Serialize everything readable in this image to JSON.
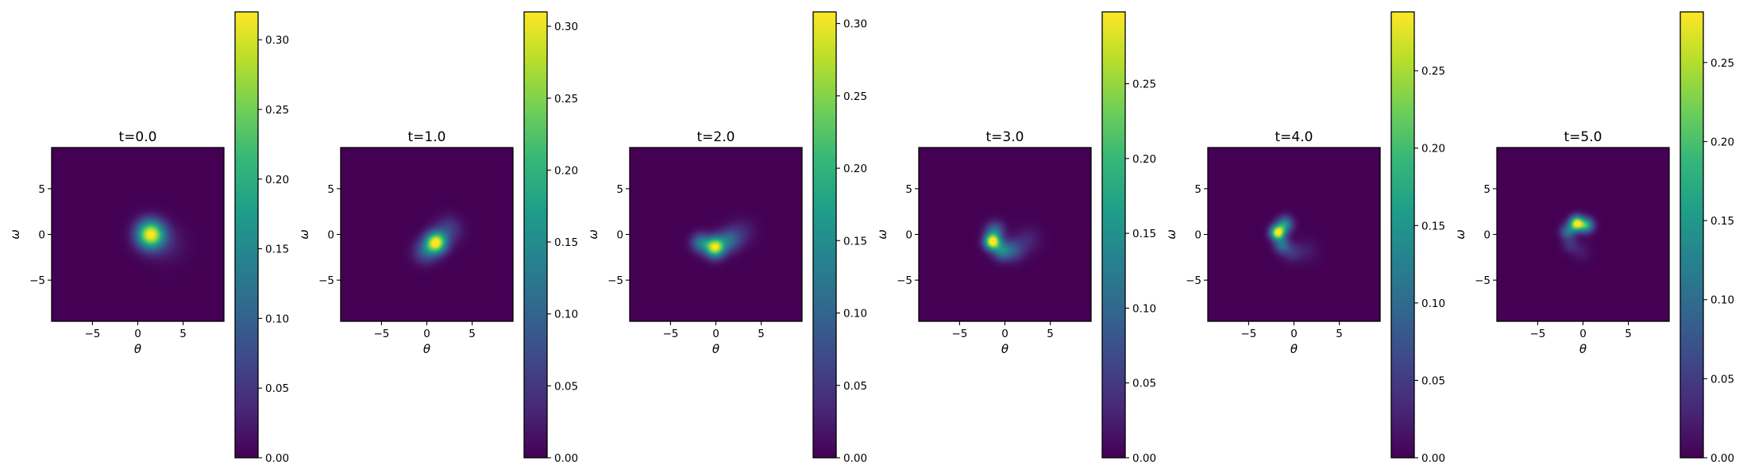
{
  "chart_data": {
    "type": "heatmap",
    "colormap": "viridis",
    "colormap_stops": [
      "#440154",
      "#482878",
      "#3e4989",
      "#31688e",
      "#26828e",
      "#1f9e89",
      "#35b779",
      "#6ece58",
      "#b5de2b",
      "#fde725"
    ],
    "x_ticks": [
      -5,
      0,
      5
    ],
    "y_ticks": [
      -5,
      0,
      5
    ],
    "xlabel": "θ",
    "ylabel": "ω",
    "xlim": [
      -9.5,
      9.5
    ],
    "ylim": [
      -9.5,
      9.5
    ],
    "panels": [
      {
        "title": "t=0.0",
        "colorbar": {
          "min": 0,
          "max": 0.32,
          "ticks": [
            "0.00",
            "0.05",
            "0.10",
            "0.15",
            "0.20",
            "0.25",
            "0.30"
          ]
        },
        "blobs": [
          {
            "theta": 1.4,
            "omega": 0.0,
            "sigma": 1.05,
            "peak": 0.32
          },
          {
            "theta": 3.2,
            "omega": -1.0,
            "sigma": 1.4,
            "peak": 0.03
          }
        ]
      },
      {
        "title": "t=1.0",
        "colorbar": {
          "min": 0,
          "max": 0.31,
          "ticks": [
            "0.00",
            "0.05",
            "0.10",
            "0.15",
            "0.20",
            "0.25",
            "0.30"
          ]
        },
        "blobs": [
          {
            "theta": 1.0,
            "omega": -0.9,
            "sigma": 0.8,
            "peak": 0.31
          },
          {
            "theta": -0.2,
            "omega": -1.9,
            "sigma": 0.9,
            "peak": 0.08
          },
          {
            "theta": 2.4,
            "omega": 0.5,
            "sigma": 1.0,
            "peak": 0.06
          }
        ]
      },
      {
        "title": "t=2.0",
        "colorbar": {
          "min": 0,
          "max": 0.308,
          "ticks": [
            "0.00",
            "0.05",
            "0.10",
            "0.15",
            "0.20",
            "0.25",
            "0.30"
          ]
        },
        "blobs": [
          {
            "theta": -0.1,
            "omega": -1.4,
            "sigma": 0.75,
            "peak": 0.3
          },
          {
            "theta": -1.7,
            "omega": -0.9,
            "sigma": 0.7,
            "peak": 0.12
          },
          {
            "theta": 1.5,
            "omega": -0.6,
            "sigma": 0.85,
            "peak": 0.1
          },
          {
            "theta": 3.0,
            "omega": 0.3,
            "sigma": 1.0,
            "peak": 0.03
          }
        ]
      },
      {
        "title": "t=3.0",
        "colorbar": {
          "min": 0,
          "max": 0.298,
          "ticks": [
            "0.00",
            "0.05",
            "0.10",
            "0.15",
            "0.20",
            "0.25"
          ]
        },
        "blobs": [
          {
            "theta": -1.4,
            "omega": -0.8,
            "sigma": 0.6,
            "peak": 0.3
          },
          {
            "theta": -1.1,
            "omega": 0.4,
            "sigma": 0.7,
            "peak": 0.1
          },
          {
            "theta": -0.3,
            "omega": -1.8,
            "sigma": 0.7,
            "peak": 0.12
          },
          {
            "theta": 1.0,
            "omega": -1.7,
            "sigma": 0.8,
            "peak": 0.07
          },
          {
            "theta": 2.5,
            "omega": -0.6,
            "sigma": 1.0,
            "peak": 0.03
          }
        ]
      },
      {
        "title": "t=4.0",
        "colorbar": {
          "min": 0,
          "max": 0.288,
          "ticks": [
            "0.00",
            "0.05",
            "0.10",
            "0.15",
            "0.20",
            "0.25"
          ]
        },
        "blobs": [
          {
            "theta": -1.8,
            "omega": 0.2,
            "sigma": 0.55,
            "peak": 0.29
          },
          {
            "theta": -1.0,
            "omega": 1.1,
            "sigma": 0.6,
            "peak": 0.14
          },
          {
            "theta": -1.3,
            "omega": -1.2,
            "sigma": 0.6,
            "peak": 0.1
          },
          {
            "theta": -0.2,
            "omega": -2.0,
            "sigma": 0.7,
            "peak": 0.04
          },
          {
            "theta": 1.4,
            "omega": -1.8,
            "sigma": 0.9,
            "peak": 0.02
          }
        ]
      },
      {
        "title": "t=5.0",
        "colorbar": {
          "min": 0,
          "max": 0.282,
          "ticks": [
            "0.00",
            "0.05",
            "0.10",
            "0.15",
            "0.20",
            "0.25"
          ]
        },
        "blobs": [
          {
            "theta": -0.7,
            "omega": 1.2,
            "sigma": 0.55,
            "peak": 0.28
          },
          {
            "theta": 0.4,
            "omega": 1.0,
            "sigma": 0.55,
            "peak": 0.16
          },
          {
            "theta": -1.7,
            "omega": 0.3,
            "sigma": 0.55,
            "peak": 0.1
          },
          {
            "theta": -1.4,
            "omega": -1.1,
            "sigma": 0.6,
            "peak": 0.04
          },
          {
            "theta": -0.2,
            "omega": -1.9,
            "sigma": 0.7,
            "peak": 0.02
          }
        ]
      }
    ]
  }
}
